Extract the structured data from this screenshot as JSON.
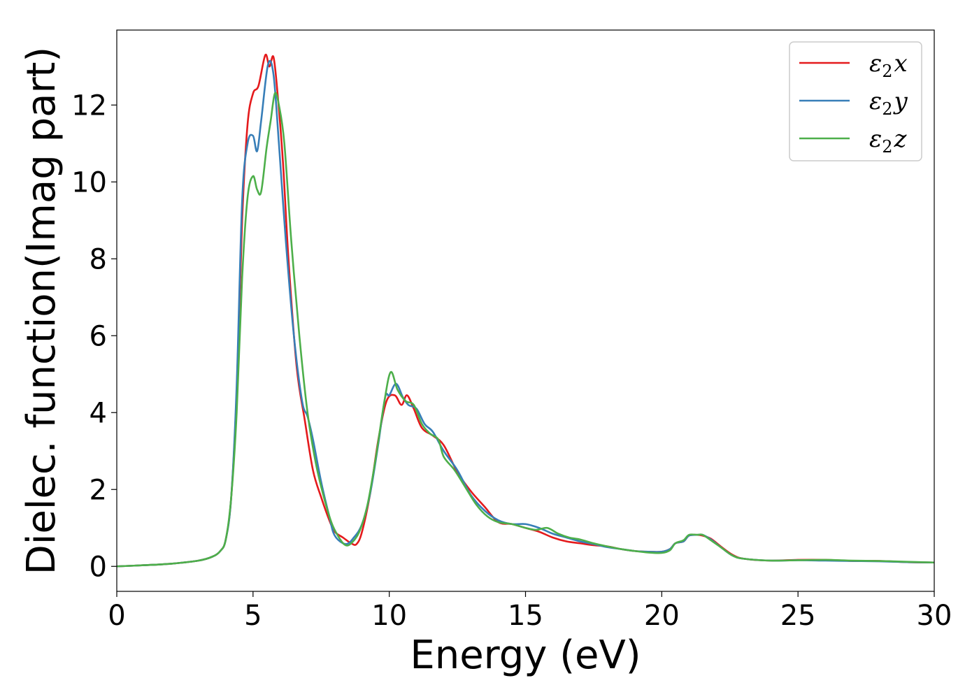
{
  "chart_data": {
    "type": "line",
    "xlabel": "Energy (eV)",
    "ylabel": "Dielec. function(Imag part)",
    "xlim": [
      0,
      30
    ],
    "ylim": [
      -0.65,
      13.95
    ],
    "xticks": [
      0,
      5,
      10,
      15,
      20,
      25,
      30
    ],
    "yticks": [
      0,
      2,
      4,
      6,
      8,
      10,
      12
    ],
    "grid": false,
    "legend_position": "top-right",
    "series": [
      {
        "name": "ε2x",
        "legend": {
          "base": "ε",
          "sub": "2",
          "suffix": "x"
        },
        "color": "#e41a1c",
        "x": [
          0,
          1,
          2,
          3,
          3.5,
          3.8,
          4.0,
          4.2,
          4.4,
          4.6,
          4.8,
          5.0,
          5.2,
          5.45,
          5.6,
          5.75,
          5.9,
          6.1,
          6.3,
          6.6,
          6.9,
          7.2,
          7.5,
          7.8,
          8.0,
          8.3,
          8.6,
          8.8,
          9.0,
          9.3,
          9.6,
          9.9,
          10.2,
          10.45,
          10.65,
          10.9,
          11.2,
          11.6,
          12.0,
          12.5,
          13.0,
          13.5,
          14.0,
          14.5,
          15.0,
          15.5,
          16.0,
          16.5,
          17.0,
          17.5,
          18.0,
          18.5,
          19.0,
          19.5,
          20.0,
          20.3,
          20.5,
          20.8,
          21.0,
          21.3,
          21.5,
          21.8,
          22.2,
          22.6,
          23.0,
          24.0,
          25.0,
          26.0,
          27.0,
          28.0,
          29.0,
          30.0
        ],
        "y": [
          0,
          0.03,
          0.07,
          0.15,
          0.25,
          0.4,
          0.7,
          1.8,
          4.5,
          9.0,
          11.5,
          12.3,
          12.5,
          13.3,
          13.0,
          13.25,
          12.3,
          10.5,
          8.0,
          5.2,
          3.8,
          2.5,
          1.8,
          1.2,
          0.9,
          0.75,
          0.6,
          0.58,
          0.9,
          1.9,
          3.3,
          4.3,
          4.45,
          4.2,
          4.45,
          4.1,
          3.6,
          3.4,
          3.15,
          2.45,
          1.95,
          1.55,
          1.15,
          1.1,
          1.0,
          0.9,
          0.75,
          0.65,
          0.6,
          0.55,
          0.52,
          0.45,
          0.4,
          0.38,
          0.38,
          0.45,
          0.6,
          0.65,
          0.8,
          0.82,
          0.8,
          0.72,
          0.5,
          0.3,
          0.2,
          0.15,
          0.17,
          0.17,
          0.14,
          0.14,
          0.11,
          0.1
        ]
      },
      {
        "name": "ε2y",
        "legend": {
          "base": "ε",
          "sub": "2",
          "suffix": "y"
        },
        "color": "#377eb8",
        "x": [
          0,
          1,
          2,
          3,
          3.5,
          3.8,
          4.0,
          4.2,
          4.4,
          4.6,
          4.8,
          5.0,
          5.15,
          5.3,
          5.55,
          5.75,
          5.95,
          6.2,
          6.5,
          6.8,
          7.0,
          7.2,
          7.5,
          7.8,
          8.0,
          8.4,
          8.7,
          9.0,
          9.3,
          9.6,
          9.85,
          10.0,
          10.25,
          10.5,
          10.7,
          11.0,
          11.3,
          11.6,
          12.0,
          12.5,
          13.0,
          13.5,
          14.0,
          14.5,
          15.0,
          15.5,
          16.0,
          16.5,
          17.0,
          17.5,
          18.0,
          18.5,
          19.0,
          19.5,
          20.0,
          20.3,
          20.5,
          20.8,
          21.0,
          21.3,
          21.5,
          21.8,
          22.2,
          22.6,
          23.0,
          24.0,
          25.0,
          26.0,
          27.0,
          28.0,
          29.0,
          30.0
        ],
        "y": [
          0,
          0.03,
          0.07,
          0.15,
          0.25,
          0.4,
          0.7,
          1.8,
          4.7,
          9.5,
          11.0,
          11.2,
          10.8,
          11.6,
          13.05,
          12.8,
          11.0,
          8.5,
          6.0,
          4.3,
          3.9,
          3.3,
          2.2,
          1.3,
          0.8,
          0.58,
          0.75,
          1.1,
          1.9,
          3.2,
          4.4,
          4.45,
          4.75,
          4.4,
          4.2,
          4.1,
          3.7,
          3.5,
          3.0,
          2.5,
          1.85,
          1.45,
          1.2,
          1.1,
          1.1,
          1.0,
          0.85,
          0.75,
          0.65,
          0.58,
          0.5,
          0.45,
          0.4,
          0.38,
          0.38,
          0.45,
          0.6,
          0.65,
          0.8,
          0.82,
          0.82,
          0.7,
          0.48,
          0.28,
          0.2,
          0.15,
          0.16,
          0.15,
          0.14,
          0.13,
          0.11,
          0.1
        ]
      },
      {
        "name": "ε2z",
        "legend": {
          "base": "ε",
          "sub": "2",
          "suffix": "z"
        },
        "color": "#4daf4a",
        "x": [
          0,
          1,
          2,
          3,
          3.5,
          3.8,
          4.0,
          4.2,
          4.4,
          4.6,
          4.8,
          5.0,
          5.15,
          5.3,
          5.5,
          5.65,
          5.8,
          5.95,
          6.15,
          6.4,
          6.7,
          7.0,
          7.3,
          7.6,
          7.9,
          8.2,
          8.4,
          8.6,
          8.9,
          9.2,
          9.5,
          9.8,
          10.05,
          10.3,
          10.6,
          10.9,
          11.2,
          11.5,
          11.8,
          12.0,
          12.4,
          12.8,
          13.2,
          13.6,
          14.0,
          14.5,
          15.0,
          15.4,
          15.8,
          16.2,
          16.6,
          17.0,
          17.5,
          18.0,
          18.5,
          19.0,
          19.5,
          20.0,
          20.3,
          20.5,
          20.8,
          21.0,
          21.3,
          21.5,
          21.8,
          22.2,
          22.6,
          23.0,
          24.0,
          25.0,
          26.0,
          27.0,
          28.0,
          29.0,
          30.0
        ],
        "y": [
          0,
          0.03,
          0.07,
          0.15,
          0.25,
          0.4,
          0.7,
          1.8,
          4.0,
          7.5,
          9.6,
          10.15,
          9.8,
          9.75,
          10.9,
          11.6,
          12.3,
          12.0,
          11.0,
          8.5,
          6.0,
          4.0,
          2.7,
          1.8,
          1.1,
          0.7,
          0.55,
          0.6,
          0.9,
          1.6,
          2.8,
          4.2,
          5.05,
          4.6,
          4.3,
          4.2,
          3.7,
          3.45,
          3.3,
          2.85,
          2.5,
          2.05,
          1.6,
          1.3,
          1.15,
          1.1,
          1.0,
          0.95,
          1.0,
          0.85,
          0.75,
          0.7,
          0.6,
          0.52,
          0.45,
          0.4,
          0.36,
          0.35,
          0.42,
          0.6,
          0.68,
          0.82,
          0.82,
          0.82,
          0.68,
          0.48,
          0.28,
          0.2,
          0.15,
          0.16,
          0.17,
          0.15,
          0.14,
          0.12,
          0.1
        ]
      }
    ]
  }
}
